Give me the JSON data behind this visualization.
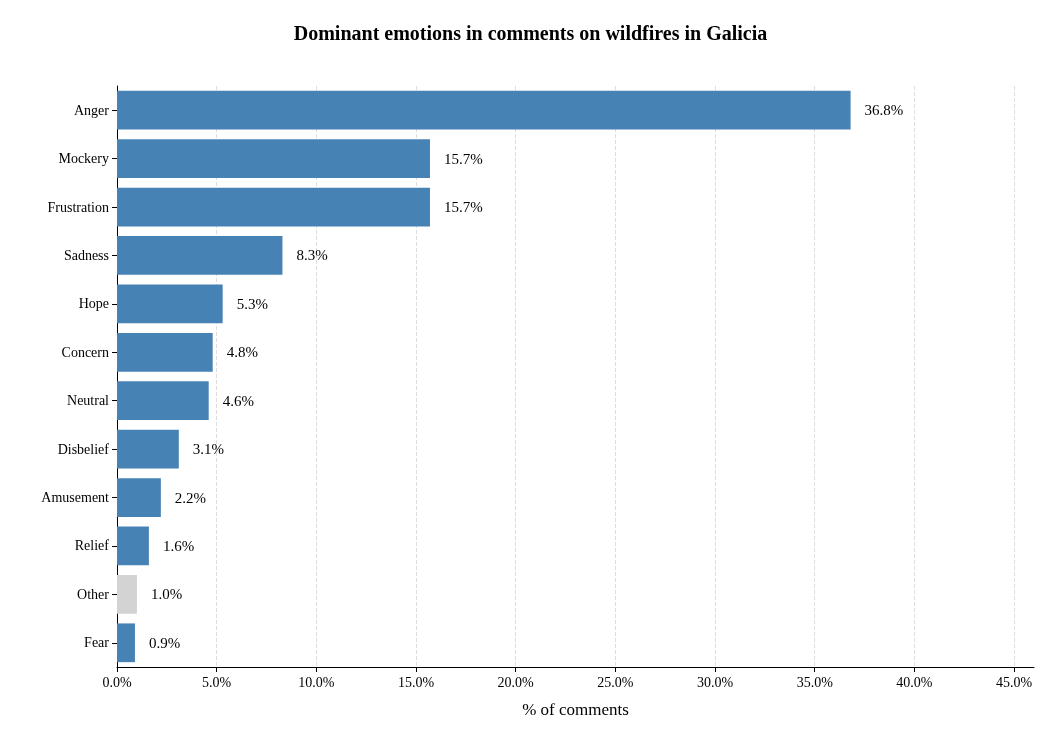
{
  "chart_data": {
    "type": "bar",
    "orientation": "horizontal",
    "title": "Dominant emotions in comments on wildfires in Galicia",
    "xlabel": "% of comments",
    "categories": [
      "Anger",
      "Mockery",
      "Frustration",
      "Sadness",
      "Hope",
      "Concern",
      "Neutral",
      "Disbelief",
      "Amusement",
      "Relief",
      "Other",
      "Fear"
    ],
    "values": [
      36.8,
      15.7,
      15.7,
      8.3,
      5.3,
      4.8,
      4.6,
      3.1,
      2.2,
      1.6,
      1.0,
      0.9
    ],
    "value_labels": [
      "36.8%",
      "15.7%",
      "15.7%",
      "8.3%",
      "5.3%",
      "4.8%",
      "4.6%",
      "3.1%",
      "2.2%",
      "1.6%",
      "1.0%",
      "0.9%"
    ],
    "colors": [
      "#4682b4",
      "#4682b4",
      "#4682b4",
      "#4682b4",
      "#4682b4",
      "#4682b4",
      "#4682b4",
      "#4682b4",
      "#4682b4",
      "#4682b4",
      "#d3d3d3",
      "#4682b4"
    ],
    "xlim": [
      0,
      46
    ],
    "xticks": [
      {
        "value": 0,
        "label": "0.0%"
      },
      {
        "value": 5,
        "label": "5.0%"
      },
      {
        "value": 10,
        "label": "10.0%"
      },
      {
        "value": 15,
        "label": "15.0%"
      },
      {
        "value": 20,
        "label": "20.0%"
      },
      {
        "value": 25,
        "label": "25.0%"
      },
      {
        "value": 30,
        "label": "30.0%"
      },
      {
        "value": 35,
        "label": "35.0%"
      },
      {
        "value": 40,
        "label": "40.0%"
      },
      {
        "value": 45,
        "label": "45.0%"
      }
    ],
    "grid": "x"
  }
}
